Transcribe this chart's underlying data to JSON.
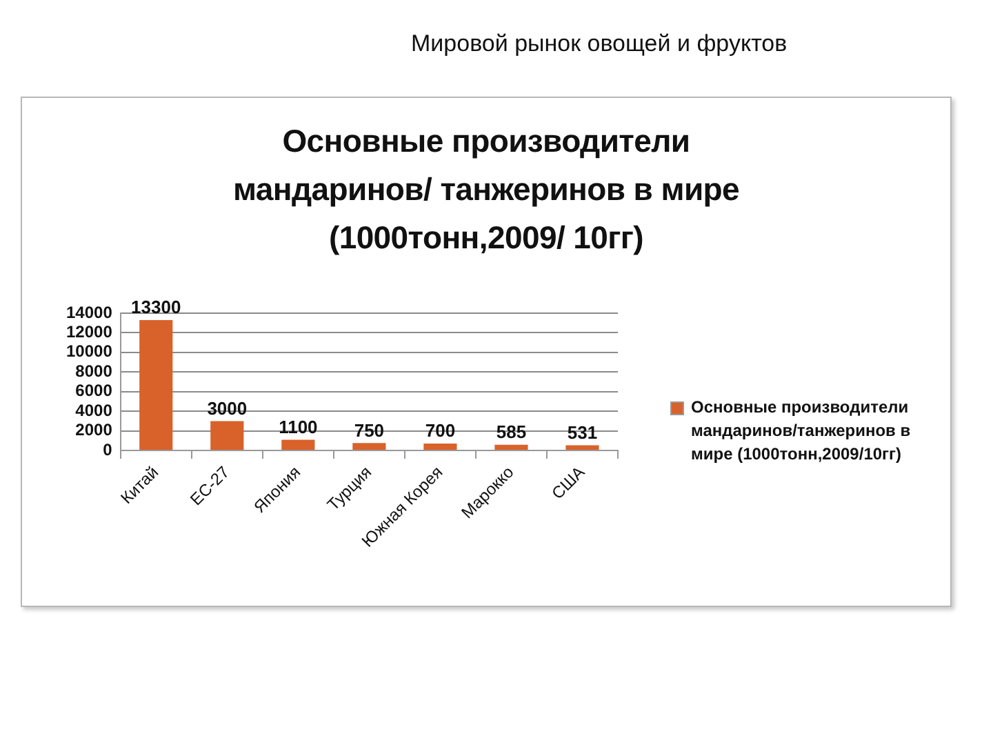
{
  "chart_data": {
    "type": "bar",
    "title": "Мировой рынок овощей и фруктов",
    "subtitle": "Основные производители мандаринов/ танжеринов в мире (1000тонн,2009/ 10гг)",
    "categories": [
      "Китай",
      "ЕС-27",
      "Япония",
      "Турция",
      "Южная Корея",
      "Марокко",
      "США"
    ],
    "series": [
      {
        "name": "Основные производители мандаринов/танжеринов в мире (1000тонн,2009/10гг)",
        "color": "#d9622b",
        "values": [
          13300,
          3000,
          1100,
          750,
          700,
          585,
          531
        ]
      }
    ],
    "ylim": [
      0,
      14000
    ],
    "yticks": [
      0,
      2000,
      4000,
      6000,
      8000,
      10000,
      12000,
      14000
    ],
    "grid": "y",
    "legend": "right",
    "data_labels": true
  }
}
